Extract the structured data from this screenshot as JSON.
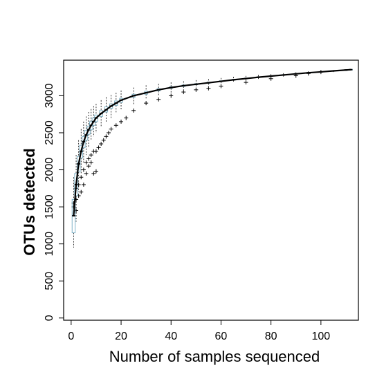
{
  "chart_data": {
    "type": "box",
    "title": "",
    "xlabel": "Number of samples sequenced",
    "ylabel": "OTUs detected",
    "xlim": [
      -3,
      115
    ],
    "ylim": [
      -30,
      3480
    ],
    "xticks": [
      0,
      20,
      40,
      60,
      80,
      100
    ],
    "yticks": [
      0,
      500,
      1000,
      1500,
      2000,
      2500,
      3000
    ],
    "grid": false,
    "legend": "none",
    "colors": {
      "box": "#7fb3c8",
      "whisker": "#000000",
      "median": "#000000",
      "outlier": "#000000"
    },
    "box_series": {
      "x": [
        1,
        2,
        3,
        4,
        5,
        6,
        7,
        8,
        9,
        10,
        12,
        14,
        16,
        18,
        20,
        25,
        30,
        35,
        40,
        45,
        50,
        55,
        60,
        65,
        70,
        75,
        80,
        85,
        90,
        95,
        100,
        105,
        110,
        112
      ],
      "median": [
        1380,
        1800,
        2080,
        2250,
        2380,
        2470,
        2540,
        2600,
        2650,
        2700,
        2760,
        2810,
        2860,
        2900,
        2940,
        3000,
        3040,
        3080,
        3110,
        3135,
        3155,
        3175,
        3195,
        3215,
        3232,
        3250,
        3265,
        3280,
        3295,
        3310,
        3322,
        3335,
        3347,
        3352
      ],
      "q1": [
        1150,
        1650,
        1970,
        2160,
        2300,
        2400,
        2480,
        2540,
        2600,
        2650,
        2720,
        2780,
        2830,
        2870,
        2910,
        2980,
        3020,
        3065,
        3100,
        3125,
        3148,
        3168,
        3190,
        3210,
        3228,
        3246,
        3262,
        3277,
        3292,
        3307,
        3320,
        3333,
        3345,
        3350
      ],
      "q3": [
        1600,
        1950,
        2180,
        2330,
        2450,
        2530,
        2590,
        2650,
        2700,
        2740,
        2800,
        2850,
        2890,
        2930,
        2965,
        3020,
        3060,
        3095,
        3122,
        3145,
        3163,
        3183,
        3202,
        3222,
        3238,
        3255,
        3270,
        3285,
        3300,
        3314,
        3326,
        3338,
        3350,
        3355
      ],
      "whisker_low": [
        950,
        1300,
        1700,
        1950,
        2100,
        2200,
        2300,
        2400,
        2450,
        2500,
        2580,
        2650,
        2700,
        2760,
        2810,
        2880,
        2950,
        3000,
        3040,
        3080,
        3105,
        3130,
        3160,
        3180,
        3200,
        3220,
        3240,
        3255,
        3270,
        3290,
        3305,
        3320,
        3335,
        3345
      ],
      "whisker_high": [
        1900,
        2200,
        2400,
        2550,
        2650,
        2720,
        2780,
        2820,
        2860,
        2890,
        2940,
        2980,
        3010,
        3040,
        3070,
        3110,
        3140,
        3160,
        3180,
        3195,
        3210,
        3225,
        3240,
        3255,
        3268,
        3280,
        3292,
        3304,
        3316,
        3326,
        3336,
        3346,
        3356,
        3360
      ]
    },
    "outliers": {
      "x": [
        1,
        1,
        2,
        2,
        2,
        3,
        3,
        4,
        4,
        5,
        5,
        6,
        6,
        7,
        7,
        8,
        8,
        9,
        9,
        10,
        10,
        11,
        12,
        13,
        14,
        15,
        16,
        18,
        20,
        22,
        25,
        30,
        35,
        40,
        45,
        50,
        55,
        60,
        70,
        80,
        90,
        95,
        100
      ],
      "y": [
        1500,
        1550,
        1450,
        1600,
        1750,
        1650,
        1800,
        1700,
        1900,
        1800,
        2000,
        1950,
        2100,
        2050,
        2150,
        2100,
        2200,
        1950,
        2250,
        1980,
        2250,
        2300,
        2350,
        2400,
        2450,
        2500,
        2550,
        2600,
        2650,
        2700,
        2800,
        2900,
        2950,
        3000,
        3050,
        3080,
        3100,
        3130,
        3180,
        3230,
        3270,
        3300,
        3320
      ]
    }
  }
}
